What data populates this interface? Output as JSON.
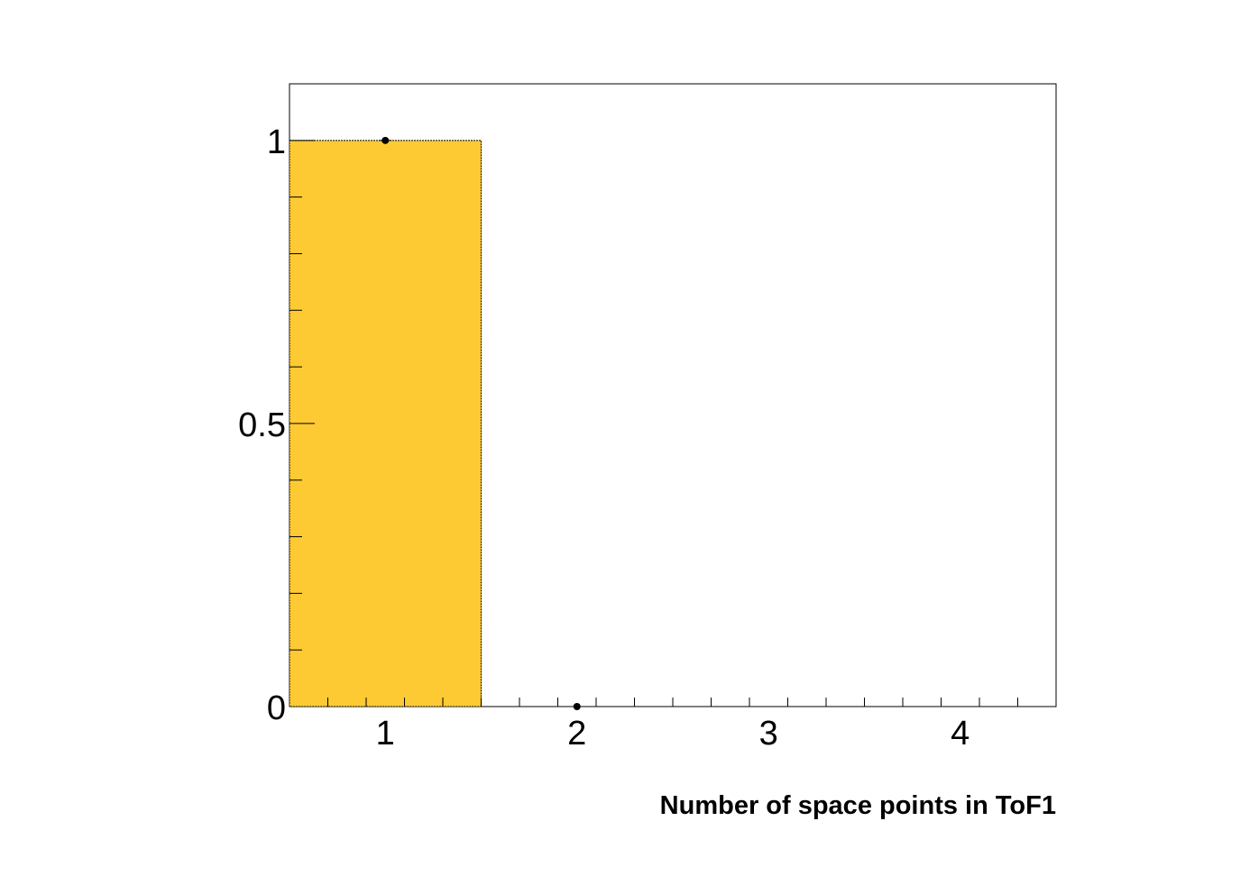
{
  "chart_data": {
    "type": "bar",
    "title": "",
    "xlabel": "Number of space points in ToF1",
    "ylabel": "",
    "x_range": [
      0.5,
      4.5
    ],
    "ylim": [
      0,
      1.1
    ],
    "bins": [
      {
        "x": 1,
        "low": 0.5,
        "high": 1.5,
        "value": 1
      },
      {
        "x": 2,
        "low": 1.5,
        "high": 2.5,
        "value": 0
      },
      {
        "x": 3,
        "low": 2.5,
        "high": 3.5,
        "value": 0
      },
      {
        "x": 4,
        "low": 3.5,
        "high": 4.5,
        "value": 0
      }
    ],
    "points": [
      {
        "x": 1,
        "y": 1
      },
      {
        "x": 2,
        "y": 0
      }
    ],
    "x_ticks": [
      {
        "value": 1,
        "label": "1"
      },
      {
        "value": 2,
        "label": "2"
      },
      {
        "value": 3,
        "label": "3"
      },
      {
        "value": 4,
        "label": "4"
      }
    ],
    "y_ticks": [
      {
        "value": 0,
        "label": "0"
      },
      {
        "value": 0.5,
        "label": "0.5"
      },
      {
        "value": 1,
        "label": "1"
      }
    ],
    "x_minor_step": 0.2,
    "y_minor_step": 0.1,
    "fill_color": "#fdca33",
    "marker_color": "#000000",
    "grid": false,
    "legend": "none"
  }
}
